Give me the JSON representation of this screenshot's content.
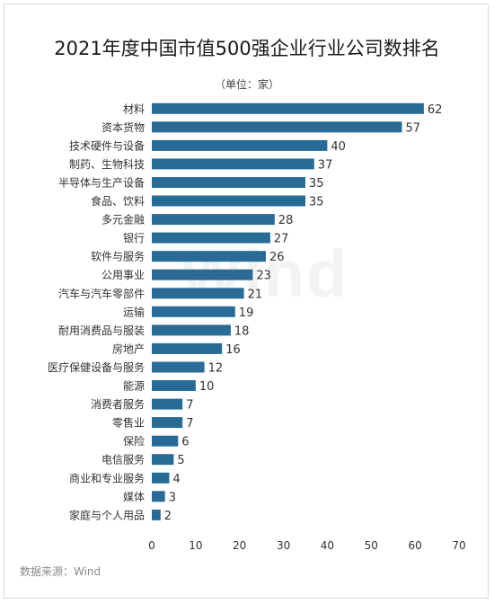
{
  "title": "2021年度中国市值500强企业行业公司数排名",
  "subtitle": "（单位：家）",
  "source": "数据来源：Wind",
  "watermark": "Wind",
  "colors": {
    "bar": "#2a6b96",
    "label": "#333333",
    "tick": "#333333"
  },
  "chart_data": {
    "type": "bar",
    "orientation": "horizontal",
    "title": "2021年度中国市值500强企业行业公司数排名",
    "subtitle": "（单位：家）",
    "xlabel": "",
    "ylabel": "",
    "xlim": [
      0,
      70
    ],
    "xticks": [
      0,
      10,
      20,
      30,
      40,
      50,
      60,
      70
    ],
    "grid": false,
    "categories": [
      "材料",
      "资本货物",
      "技术硬件与设备",
      "制药、生物科技",
      "半导体与生产设备",
      "食品、饮料",
      "多元金融",
      "银行",
      "软件与服务",
      "公用事业",
      "汽车与汽车零部件",
      "运输",
      "耐用消费品与服装",
      "房地产",
      "医疗保健设备与服务",
      "能源",
      "消费者服务",
      "零售业",
      "保险",
      "电信服务",
      "商业和专业服务",
      "媒体",
      "家庭与个人用品"
    ],
    "values": [
      62,
      57,
      40,
      37,
      35,
      35,
      28,
      27,
      26,
      23,
      21,
      19,
      18,
      16,
      12,
      10,
      7,
      7,
      6,
      5,
      4,
      3,
      2
    ]
  }
}
